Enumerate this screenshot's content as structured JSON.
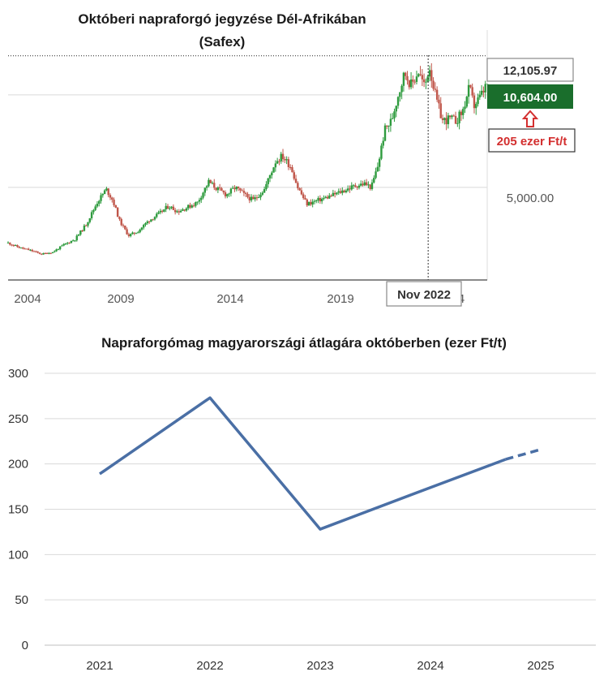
{
  "colors": {
    "up": "#2e9b3e",
    "down": "#c0564a",
    "current_label_bg": "#1a6e2c",
    "highlight_text": "#d32f2f",
    "line": "#4a6fa5",
    "grid": "#d9d9d9"
  },
  "chart_data": [
    {
      "type": "candlestick",
      "title": "Októberi napraforgó jegyzése Dél-Afrikában",
      "subtitle": "(Safex)",
      "x_tick_labels": [
        "2004",
        "2009",
        "2014",
        "2019"
      ],
      "partial_tick_label": "4",
      "y_tick_labels": [
        "5,000.00"
      ],
      "y_ticks": [
        5000,
        10000
      ],
      "xlim": [
        2004.0,
        2025.5
      ],
      "ylim": [
        0,
        13500
      ],
      "crosshair": {
        "label": "Nov 2022",
        "x": 2022.85,
        "y": 12105.97
      },
      "max_label": "12,105.97",
      "current_label": "10,604.00",
      "current_value": 10604,
      "annotation": "205 ezer Ft/t",
      "series": [
        {
          "points": [
            [
              2004.0,
              2000
            ],
            [
              2004.5,
              1750
            ],
            [
              2005.0,
              1600
            ],
            [
              2005.5,
              1400
            ],
            [
              2006.0,
              1500
            ],
            [
              2006.5,
              1900
            ],
            [
              2007.0,
              2200
            ],
            [
              2007.5,
              3000
            ],
            [
              2008.0,
              4200
            ],
            [
              2008.4,
              4900
            ],
            [
              2008.7,
              4300
            ],
            [
              2009.0,
              3200
            ],
            [
              2009.4,
              2400
            ],
            [
              2009.8,
              2600
            ],
            [
              2010.3,
              3200
            ],
            [
              2010.8,
              3600
            ],
            [
              2011.2,
              4000
            ],
            [
              2011.6,
              3700
            ],
            [
              2012.0,
              3900
            ],
            [
              2012.5,
              4200
            ],
            [
              2013.0,
              5300
            ],
            [
              2013.4,
              4900
            ],
            [
              2013.8,
              4600
            ],
            [
              2014.2,
              5000
            ],
            [
              2014.6,
              4600
            ],
            [
              2015.0,
              4300
            ],
            [
              2015.5,
              4900
            ],
            [
              2016.0,
              6400
            ],
            [
              2016.3,
              6700
            ],
            [
              2016.7,
              6100
            ],
            [
              2017.0,
              5000
            ],
            [
              2017.4,
              4100
            ],
            [
              2017.9,
              4300
            ],
            [
              2018.4,
              4500
            ],
            [
              2018.8,
              4700
            ],
            [
              2019.2,
              4900
            ],
            [
              2019.6,
              5100
            ],
            [
              2020.0,
              5200
            ],
            [
              2020.3,
              5000
            ],
            [
              2020.6,
              6200
            ],
            [
              2020.9,
              8100
            ],
            [
              2021.2,
              8600
            ],
            [
              2021.5,
              10000
            ],
            [
              2021.8,
              11200
            ],
            [
              2022.1,
              10500
            ],
            [
              2022.4,
              11300
            ],
            [
              2022.7,
              10400
            ],
            [
              2022.9,
              11600
            ],
            [
              2023.2,
              9800
            ],
            [
              2023.5,
              8600
            ],
            [
              2023.8,
              8700
            ],
            [
              2024.1,
              8600
            ],
            [
              2024.4,
              9100
            ],
            [
              2024.7,
              10400
            ],
            [
              2024.9,
              9400
            ],
            [
              2025.2,
              9900
            ],
            [
              2025.5,
              10604
            ]
          ]
        }
      ]
    },
    {
      "type": "line",
      "title": "Napraforgómag magyarországi átlagára októberben (ezer Ft/t)",
      "categories": [
        "2021",
        "2022",
        "2023",
        "2024",
        "2025"
      ],
      "values": [
        189,
        273,
        128,
        174,
        216
      ],
      "dashed_from_index": 3,
      "dashed_start_value": 205,
      "ylim": [
        0,
        300
      ],
      "yticks": [
        0,
        50,
        100,
        150,
        200,
        250,
        300
      ]
    }
  ]
}
